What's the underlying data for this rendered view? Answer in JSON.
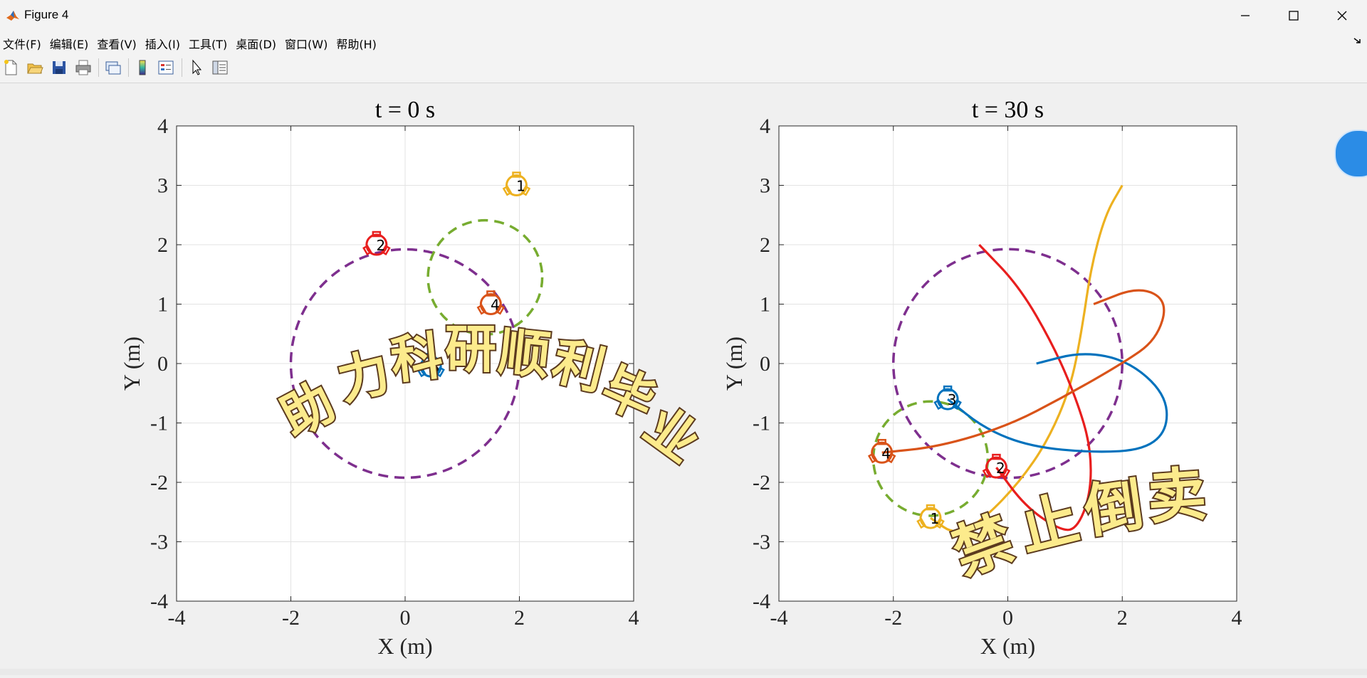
{
  "window": {
    "title": "Figure 4",
    "controls": {
      "minimize": "minimize-icon",
      "maximize": "maximize-icon",
      "close": "close-icon"
    }
  },
  "menu": {
    "items": [
      "文件(F)",
      "编辑(E)",
      "查看(V)",
      "插入(I)",
      "工具(T)",
      "桌面(D)",
      "窗口(W)",
      "帮助(H)"
    ]
  },
  "toolbar": {
    "buttons": [
      "new-figure-icon",
      "open-file-icon",
      "save-icon",
      "print-icon",
      "link-plot-icon",
      "colorbar-icon",
      "legend-icon",
      "pointer-icon",
      "property-inspector-icon"
    ]
  },
  "colors": {
    "robot1": "#EDB120",
    "robot2": "#E81E1E",
    "robot3": "#0072BD",
    "robot4": "#D95319",
    "circle_purple": "#7E2F8E",
    "circle_green": "#77AC30",
    "watermark_fill": "#FCEB8C",
    "watermark_stroke": "#5b3a1e"
  },
  "watermarks": [
    "助力科研顺利毕业",
    "禁止倒卖"
  ],
  "chart_data": [
    {
      "type": "line",
      "title": "t = 0 s",
      "xlabel": "X (m)",
      "ylabel": "Y (m)",
      "xlim": [
        -4,
        4
      ],
      "ylim": [
        -4,
        4
      ],
      "xticks": [
        "-4",
        "-2",
        "0",
        "2",
        "4"
      ],
      "yticks": [
        "4",
        "3",
        "2",
        "1",
        "0",
        "-1",
        "-2",
        "-3",
        "-4"
      ],
      "grid": true,
      "circles": [
        {
          "name": "",
          "center": [
            0,
            0
          ],
          "radius": 2,
          "color": "#7E2F8E",
          "style": "dashed"
        },
        {
          "name": "",
          "center": [
            1.4,
            1.45
          ],
          "radius": 1.0,
          "color": "#77AC30",
          "style": "dashed"
        }
      ],
      "robots": [
        {
          "label": "1",
          "x": 1.95,
          "y": 3.0,
          "color": "#EDB120"
        },
        {
          "label": "2",
          "x": -0.5,
          "y": 2.0,
          "color": "#E81E1E"
        },
        {
          "label": "3",
          "x": 0.45,
          "y": -0.05,
          "color": "#0072BD"
        },
        {
          "label": "4",
          "x": 1.5,
          "y": 1.0,
          "color": "#D95319"
        }
      ],
      "trajectories": []
    },
    {
      "type": "line",
      "title": "t = 30 s",
      "xlabel": "X (m)",
      "ylabel": "Y (m)",
      "xlim": [
        -4,
        4
      ],
      "ylim": [
        -4,
        4
      ],
      "xticks": [
        "-4",
        "-2",
        "0",
        "2",
        "4"
      ],
      "yticks": [
        "4",
        "3",
        "2",
        "1",
        "0",
        "-1",
        "-2",
        "-3",
        "-4"
      ],
      "grid": true,
      "circles": [
        {
          "name": "",
          "center": [
            0,
            0
          ],
          "radius": 2,
          "color": "#7E2F8E",
          "style": "dashed"
        },
        {
          "name": "",
          "center": [
            -1.35,
            -1.6
          ],
          "radius": 1.0,
          "color": "#77AC30",
          "style": "dashed"
        }
      ],
      "robots": [
        {
          "label": "1",
          "x": -1.35,
          "y": -2.6,
          "color": "#EDB120"
        },
        {
          "label": "2",
          "x": -0.2,
          "y": -1.75,
          "color": "#E81E1E"
        },
        {
          "label": "3",
          "x": -1.05,
          "y": -0.6,
          "color": "#0072BD"
        },
        {
          "label": "4",
          "x": -2.2,
          "y": -1.5,
          "color": "#D95319"
        }
      ],
      "trajectories": [
        {
          "robot": "1",
          "color": "#EDB120",
          "points": [
            [
              2.0,
              3.0
            ],
            [
              1.7,
              2.5
            ],
            [
              1.45,
              1.6
            ],
            [
              1.3,
              0.6
            ],
            [
              1.1,
              -0.4
            ],
            [
              0.7,
              -1.3
            ],
            [
              0.2,
              -2.0
            ],
            [
              -0.4,
              -2.6
            ],
            [
              -0.9,
              -2.9
            ],
            [
              -1.35,
              -2.6
            ]
          ]
        },
        {
          "robot": "2",
          "color": "#E81E1E",
          "points": [
            [
              -0.5,
              2.0
            ],
            [
              0.2,
              1.3
            ],
            [
              0.8,
              0.3
            ],
            [
              1.2,
              -0.6
            ],
            [
              1.45,
              -1.4
            ],
            [
              1.45,
              -2.2
            ],
            [
              1.2,
              -2.8
            ],
            [
              0.9,
              -2.8
            ],
            [
              0.3,
              -2.4
            ],
            [
              -0.2,
              -1.75
            ]
          ]
        },
        {
          "robot": "3",
          "color": "#0072BD",
          "points": [
            [
              0.5,
              0.0
            ],
            [
              1.3,
              0.2
            ],
            [
              2.1,
              0.05
            ],
            [
              2.75,
              -0.5
            ],
            [
              2.8,
              -1.1
            ],
            [
              2.4,
              -1.45
            ],
            [
              1.5,
              -1.5
            ],
            [
              0.4,
              -1.4
            ],
            [
              -0.4,
              -1.1
            ],
            [
              -1.05,
              -0.6
            ]
          ]
        },
        {
          "robot": "4",
          "color": "#D95319",
          "points": [
            [
              1.5,
              1.0
            ],
            [
              2.3,
              1.3
            ],
            [
              2.8,
              1.05
            ],
            [
              2.6,
              0.4
            ],
            [
              2.0,
              0.0
            ],
            [
              1.0,
              -0.55
            ],
            [
              0.0,
              -1.05
            ],
            [
              -1.2,
              -1.4
            ],
            [
              -2.2,
              -1.5
            ]
          ]
        }
      ]
    }
  ]
}
